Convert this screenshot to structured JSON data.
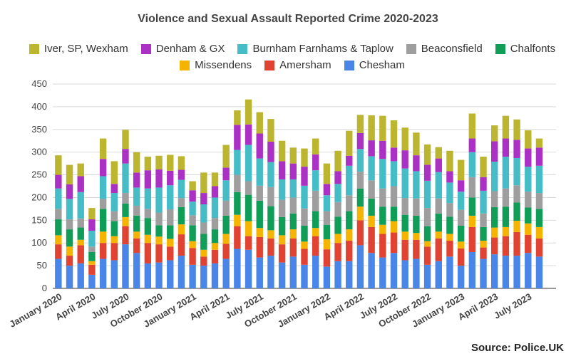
{
  "source": "Source: Police.UK",
  "chart_data": {
    "type": "bar",
    "stacked": true,
    "title": "Violence and Sexual Assault Reported Crime 2020-2023",
    "xlabel": "",
    "ylabel": "",
    "ylim": [
      0,
      450
    ],
    "yticks": [
      0,
      50,
      100,
      150,
      200,
      250,
      300,
      350,
      400,
      450
    ],
    "grid": true,
    "legend_position": "top",
    "x_tick_labels": [
      {
        "index": 0,
        "label": "January 2020"
      },
      {
        "index": 3,
        "label": "April 2020"
      },
      {
        "index": 6,
        "label": "July 2020"
      },
      {
        "index": 9,
        "label": "October 2020"
      },
      {
        "index": 12,
        "label": "January 2021"
      },
      {
        "index": 15,
        "label": "April 2021"
      },
      {
        "index": 18,
        "label": "July 2021"
      },
      {
        "index": 21,
        "label": "October 2021"
      },
      {
        "index": 24,
        "label": "January 2022"
      },
      {
        "index": 27,
        "label": "April 2022"
      },
      {
        "index": 30,
        "label": "July 2022"
      },
      {
        "index": 33,
        "label": "October 2022"
      },
      {
        "index": 36,
        "label": "January 2023"
      },
      {
        "index": 39,
        "label": "April 2023"
      },
      {
        "index": 42,
        "label": "July 2023"
      }
    ],
    "categories": [
      "2020-01",
      "2020-02",
      "2020-03",
      "2020-04",
      "2020-05",
      "2020-06",
      "2020-07",
      "2020-08",
      "2020-09",
      "2020-10",
      "2020-11",
      "2020-12",
      "2021-01",
      "2021-02",
      "2021-03",
      "2021-04",
      "2021-05",
      "2021-06",
      "2021-07",
      "2021-08",
      "2021-09",
      "2021-10",
      "2021-11",
      "2021-12",
      "2022-01",
      "2022-02",
      "2022-03",
      "2022-04",
      "2022-05",
      "2022-06",
      "2022-07",
      "2022-08",
      "2022-09",
      "2022-10",
      "2022-11",
      "2022-12",
      "2023-01",
      "2023-02",
      "2023-03",
      "2023-04",
      "2023-05",
      "2023-06",
      "2023-07",
      "2023-08",
      "2023-09"
    ],
    "series": [
      {
        "name": "Chesham",
        "color": "#4a86e8",
        "values": [
          65,
          50,
          55,
          30,
          65,
          62,
          97,
          78,
          55,
          57,
          62,
          72,
          52,
          50,
          55,
          65,
          87,
          85,
          68,
          72,
          57,
          70,
          52,
          72,
          48,
          60,
          60,
          95,
          78,
          68,
          78,
          62,
          65,
          52,
          60,
          70,
          50,
          80,
          65,
          75,
          72,
          72,
          78,
          70,
          0
        ]
      },
      {
        "name": "Amersham",
        "color": "#e04332",
        "values": [
          32,
          22,
          40,
          22,
          35,
          38,
          40,
          32,
          45,
          40,
          30,
          47,
          37,
          20,
          30,
          33,
          50,
          30,
          45,
          38,
          40,
          40,
          35,
          43,
          38,
          40,
          45,
          55,
          57,
          52,
          45,
          45,
          42,
          40,
          50,
          35,
          38,
          55,
          25,
          37,
          43,
          52,
          40,
          40,
          0
        ]
      },
      {
        "name": "Missendens",
        "color": "#f4b400",
        "values": [
          20,
          20,
          12,
          8,
          25,
          15,
          20,
          15,
          18,
          17,
          17,
          22,
          15,
          15,
          15,
          22,
          25,
          33,
          20,
          18,
          20,
          20,
          16,
          18,
          22,
          20,
          25,
          30,
          25,
          20,
          25,
          18,
          15,
          12,
          15,
          15,
          15,
          25,
          15,
          22,
          20,
          25,
          25,
          25,
          0
        ]
      },
      {
        "name": "Chalfonts",
        "color": "#0f9d58",
        "values": [
          35,
          38,
          27,
          20,
          50,
          33,
          30,
          35,
          37,
          25,
          30,
          38,
          35,
          35,
          30,
          40,
          50,
          58,
          60,
          53,
          40,
          35,
          35,
          37,
          32,
          38,
          40,
          40,
          38,
          40,
          32,
          37,
          38,
          33,
          40,
          38,
          35,
          40,
          30,
          45,
          45,
          40,
          35,
          40,
          0
        ]
      },
      {
        "name": "Beaconsfield",
        "color": "#9e9e9e",
        "values": [
          23,
          22,
          20,
          12,
          22,
          22,
          23,
          22,
          20,
          28,
          35,
          20,
          22,
          25,
          25,
          33,
          38,
          30,
          33,
          42,
          38,
          35,
          38,
          45,
          30,
          32,
          35,
          37,
          40,
          40,
          45,
          37,
          38,
          40,
          33,
          30,
          35,
          45,
          30,
          35,
          40,
          38,
          35,
          35,
          0
        ]
      },
      {
        "name": "Burnham Farnhams & Taplow",
        "color": "#46bdc6",
        "values": [
          45,
          45,
          58,
          35,
          50,
          40,
          65,
          40,
          45,
          55,
          53,
          40,
          30,
          40,
          45,
          45,
          55,
          80,
          60,
          55,
          45,
          40,
          50,
          45,
          35,
          40,
          65,
          50,
          53,
          65,
          55,
          65,
          60,
          60,
          58,
          45,
          40,
          55,
          50,
          65,
          70,
          60,
          55,
          60,
          0
        ]
      },
      {
        "name": "Denham & GX",
        "color": "#ab30c4",
        "values": [
          30,
          32,
          35,
          25,
          38,
          20,
          32,
          33,
          40,
          40,
          32,
          22,
          25,
          25,
          25,
          28,
          55,
          45,
          55,
          45,
          40,
          35,
          42,
          35,
          25,
          28,
          22,
          35,
          35,
          40,
          30,
          40,
          35,
          35,
          30,
          25,
          25,
          30,
          30,
          45,
          40,
          40,
          40,
          40,
          0
        ]
      },
      {
        "name": "Iver, SP, Wexham",
        "color": "#bcb52f",
        "values": [
          43,
          43,
          28,
          25,
          45,
          50,
          42,
          45,
          30,
          30,
          35,
          30,
          20,
          45,
          30,
          50,
          32,
          55,
          47,
          50,
          45,
          35,
          40,
          35,
          45,
          45,
          55,
          40,
          55,
          55,
          60,
          50,
          50,
          45,
          25,
          45,
          45,
          55,
          45,
          35,
          50,
          45,
          40,
          20,
          0
        ]
      }
    ]
  },
  "legend_rows": [
    [
      "Iver, SP, Wexham",
      "Denham & GX",
      "Burnham Farnhams & Taplow",
      "Beaconsfield",
      "Chalfonts"
    ],
    [
      "Missendens",
      "Amersham",
      "Chesham"
    ]
  ]
}
